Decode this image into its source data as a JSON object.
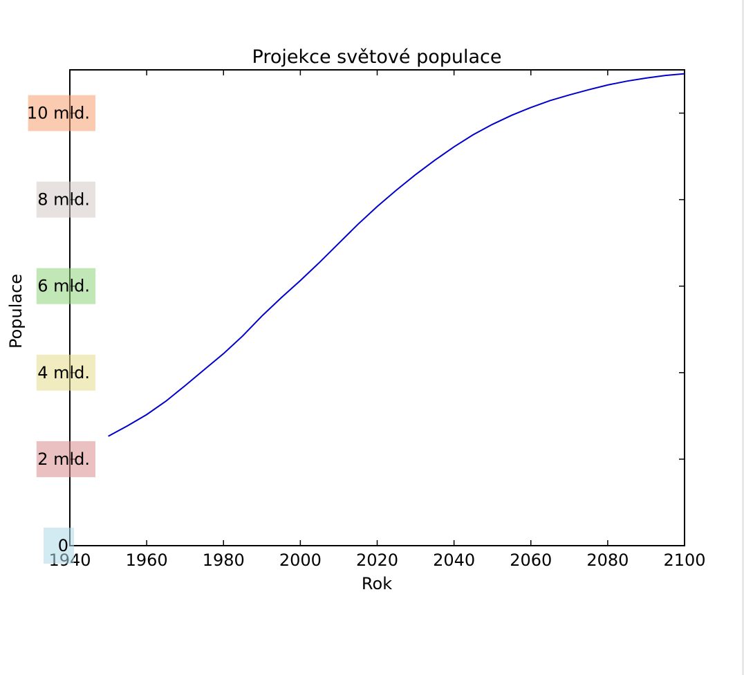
{
  "chart_data": {
    "type": "line",
    "title": "Projekce světové populace",
    "xlabel": "Rok",
    "ylabel": "Populace",
    "xlim": [
      1940,
      2100
    ],
    "ylim": [
      0,
      11000000000
    ],
    "x_ticks": [
      "1940",
      "1960",
      "1980",
      "2000",
      "2020",
      "2040",
      "2060",
      "2080",
      "2100"
    ],
    "y_ticks": [
      {
        "value": 0,
        "label": "0",
        "color": "#add8e6"
      },
      {
        "value": 2000000000,
        "label": "2 mld.",
        "color": "#d98c8c"
      },
      {
        "value": 4000000000,
        "label": "4 mld.",
        "color": "#e6dc8c"
      },
      {
        "value": 6000000000,
        "label": "6 mld.",
        "color": "#90d47a"
      },
      {
        "value": 8000000000,
        "label": "8 mld.",
        "color": "#d3cbc5"
      },
      {
        "value": 10000000000,
        "label": "10 mld.",
        "color": "#f5a070"
      }
    ],
    "grid": false,
    "series": [
      {
        "color": "#0000cc",
        "x": [
          1950,
          1955,
          1960,
          1965,
          1970,
          1975,
          1980,
          1985,
          1990,
          1995,
          2000,
          2005,
          2010,
          2015,
          2020,
          2025,
          2030,
          2035,
          2040,
          2045,
          2050,
          2055,
          2060,
          2065,
          2070,
          2075,
          2080,
          2085,
          2090,
          2095,
          2100
        ],
        "y": [
          2530000000,
          2770000000,
          3030000000,
          3340000000,
          3700000000,
          4070000000,
          4440000000,
          4850000000,
          5310000000,
          5730000000,
          6130000000,
          6550000000,
          6990000000,
          7430000000,
          7840000000,
          8220000000,
          8580000000,
          8910000000,
          9220000000,
          9500000000,
          9740000000,
          9950000000,
          10130000000,
          10290000000,
          10420000000,
          10540000000,
          10650000000,
          10740000000,
          10810000000,
          10870000000,
          10910000000
        ]
      }
    ]
  }
}
